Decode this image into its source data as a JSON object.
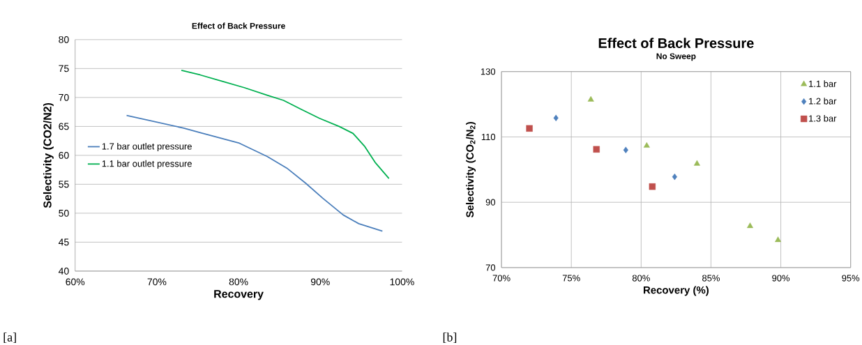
{
  "chart_data": [
    {
      "type": "line",
      "title": "Effect of Back Pressure",
      "xlabel": "Recovery",
      "ylabel": "Selectivity (CO2/N2)",
      "xlim": [
        60,
        100
      ],
      "xticks": [
        {
          "value": 60,
          "label": "60%"
        },
        {
          "value": 70,
          "label": "70%"
        },
        {
          "value": 80,
          "label": "80%"
        },
        {
          "value": 90,
          "label": "90%"
        },
        {
          "value": 100,
          "label": "100%"
        }
      ],
      "ylim": [
        40,
        80
      ],
      "yticks": [
        40,
        45,
        50,
        55,
        60,
        65,
        70,
        75,
        80
      ],
      "grid": "y",
      "legend": "left",
      "marker": "none",
      "series": [
        {
          "name": "1.7 bar outlet pressure",
          "color": "#4a7ebb",
          "x": [
            66.3,
            73.3,
            75.4,
            80.1,
            83.5,
            85.9,
            88.2,
            90.3,
            92.8,
            94.7,
            97.6
          ],
          "values": [
            66.9,
            64.7,
            63.9,
            62.1,
            59.8,
            57.8,
            55.2,
            52.6,
            49.7,
            48.2,
            46.9
          ]
        },
        {
          "name": "1.1 bar outlet pressure",
          "color": "#00b050",
          "x": [
            73.0,
            75.3,
            78.0,
            80.7,
            83.5,
            85.5,
            87.6,
            89.9,
            92.3,
            94.0,
            95.4,
            96.7,
            98.4
          ],
          "values": [
            74.7,
            73.9,
            72.8,
            71.7,
            70.4,
            69.5,
            68.0,
            66.4,
            65.0,
            63.8,
            61.6,
            58.8,
            56.0
          ]
        }
      ],
      "annotations": [
        "[a]"
      ]
    },
    {
      "type": "scatter",
      "title": "Effect of Back Pressure",
      "subtitle": "No Sweep",
      "xlabel": "Recovery (%)",
      "ylabel": "Selectivity (CO$_{2}$/N$_{2}$)",
      "xlim": [
        70,
        95
      ],
      "xticks": [
        {
          "value": 70,
          "label": "70%"
        },
        {
          "value": 75,
          "label": "75%"
        },
        {
          "value": 80,
          "label": "80%"
        },
        {
          "value": 85,
          "label": "85%"
        },
        {
          "value": 90,
          "label": "90%"
        },
        {
          "value": 95,
          "label": "95%"
        }
      ],
      "ylim": [
        70,
        130
      ],
      "yticks": [
        70,
        90,
        110,
        130
      ],
      "grid": true,
      "legend": "top right",
      "series": [
        {
          "name": "1.1 bar",
          "color": "#9bbb59",
          "marker": "triangle",
          "x": [
            76.4,
            80.4,
            84.0,
            87.8,
            89.8
          ],
          "values": [
            121.4,
            107.3,
            101.8,
            82.7,
            78.4
          ]
        },
        {
          "name": "1.2 bar",
          "color": "#4f81bd",
          "marker": "diamond",
          "x": [
            73.9,
            78.9,
            82.4
          ],
          "values": [
            115.8,
            106.0,
            97.8
          ]
        },
        {
          "name": "1.3 bar",
          "color": "#c0504d",
          "marker": "square",
          "x": [
            72.0,
            76.8,
            80.8
          ],
          "values": [
            112.6,
            106.2,
            94.8
          ]
        }
      ],
      "annotations": [
        "[b]"
      ]
    }
  ]
}
